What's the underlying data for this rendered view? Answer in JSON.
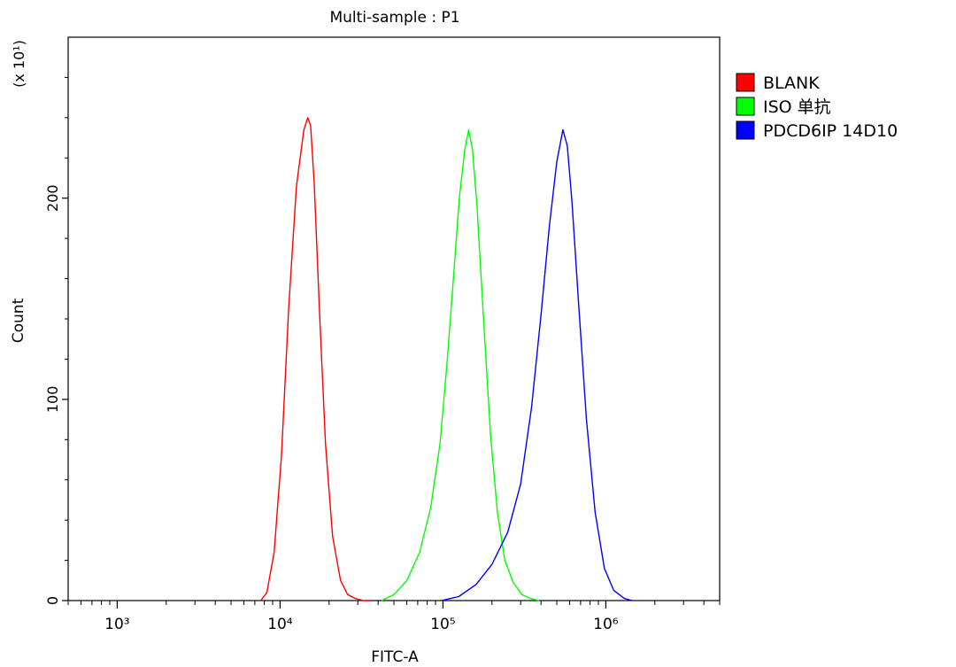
{
  "chart_data": {
    "type": "line",
    "title": "Multi-sample : P1",
    "xlabel": "FITC-A",
    "ylabel": "Count",
    "y_multiplier_label": "(x 10¹)",
    "x_scale": "log",
    "xlim": [
      500,
      5000000
    ],
    "ylim": [
      0,
      280
    ],
    "x_ticks": [
      {
        "value": 1000,
        "label": "10³"
      },
      {
        "value": 10000,
        "label": "10⁴"
      },
      {
        "value": 100000,
        "label": "10⁵"
      },
      {
        "value": 1000000,
        "label": "10⁶"
      }
    ],
    "y_ticks": [
      {
        "value": 0,
        "label": "0"
      },
      {
        "value": 100,
        "label": "100"
      },
      {
        "value": 200,
        "label": "200"
      }
    ],
    "grid": false,
    "legend_position": "right",
    "series": [
      {
        "name": "BLANK",
        "color": "#ff0000",
        "x": [
          7600,
          8300,
          9200,
          10200,
          11300,
          12600,
          14000,
          14800,
          15400,
          16200,
          17500,
          19000,
          21000,
          23500,
          26000,
          29000,
          32500,
          36000
        ],
        "y": [
          0,
          4,
          24,
          72,
          146,
          206,
          234,
          240,
          236,
          208,
          142,
          78,
          32,
          10,
          3,
          1,
          0,
          0
        ]
      },
      {
        "name": "ISO 单抗",
        "color": "#00ff00",
        "x": [
          42000,
          50000,
          60000,
          72000,
          84000,
          96000,
          106000,
          116000,
          126000,
          136000,
          144000,
          152000,
          162000,
          178000,
          196000,
          216000,
          240000,
          270000,
          305000,
          345000,
          390000
        ],
        "y": [
          0,
          3,
          10,
          24,
          46,
          78,
          118,
          160,
          200,
          224,
          234,
          224,
          196,
          138,
          82,
          44,
          20,
          9,
          3,
          1,
          0
        ]
      },
      {
        "name": "PDCD6IP 14D10",
        "color": "#0000ff",
        "x": [
          98000,
          125000,
          160000,
          200000,
          250000,
          300000,
          350000,
          400000,
          450000,
          500000,
          545000,
          580000,
          620000,
          680000,
          760000,
          860000,
          980000,
          1120000,
          1300000,
          1450000
        ],
        "y": [
          0,
          2,
          8,
          18,
          34,
          58,
          96,
          142,
          186,
          218,
          234,
          226,
          198,
          148,
          90,
          44,
          16,
          5,
          1,
          0
        ]
      }
    ]
  }
}
